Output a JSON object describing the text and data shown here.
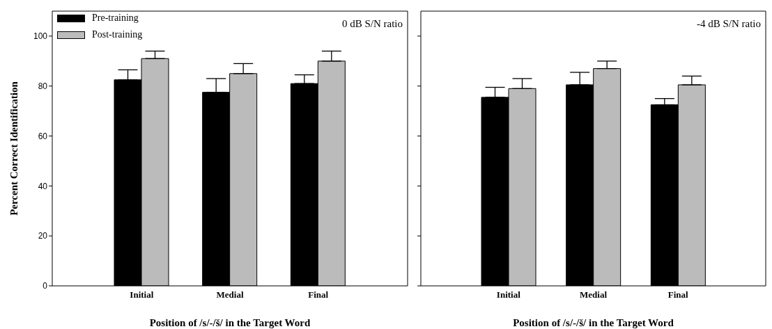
{
  "chart_data": [
    {
      "type": "bar",
      "categories": [
        "Initial",
        "Medial",
        "Final"
      ],
      "xlabel": "Position of /s/-/š/ in the Target Word",
      "ylabel": "Percent Correct Identification",
      "ylim": [
        0,
        110
      ],
      "yticks": [
        0,
        20,
        40,
        60,
        80,
        100
      ],
      "annotations": [
        "0 dB S/N ratio"
      ],
      "legend": "top left",
      "series": [
        {
          "name": "Pre-training",
          "color": "#000000",
          "values": [
            82.5,
            77.5,
            81
          ],
          "errors": [
            [
              82.5,
              86.5
            ],
            [
              77.5,
              83
            ],
            [
              81,
              84.5
            ]
          ]
        },
        {
          "name": "Post-training",
          "color": "#bbbbbb",
          "values": [
            91,
            85,
            90
          ],
          "errors": [
            [
              91,
              94
            ],
            [
              85,
              89
            ],
            [
              90,
              94
            ]
          ]
        }
      ]
    },
    {
      "type": "bar",
      "categories": [
        "Initial",
        "Medial",
        "Final"
      ],
      "xlabel": "Position of /s/-/š/ in the Target Word",
      "ylim": [
        0,
        110
      ],
      "yticks": [
        0,
        20,
        40,
        60,
        80,
        100
      ],
      "tick_labels": "x",
      "annotations": [
        "-4 dB S/N ratio"
      ],
      "series": [
        {
          "color": "#000000",
          "values": [
            75.5,
            80.5,
            72.5
          ],
          "errors": [
            [
              75.5,
              79.5
            ],
            [
              80.5,
              85.5
            ],
            [
              72.5,
              75
            ]
          ]
        },
        {
          "color": "#bbbbbb",
          "values": [
            79,
            87,
            80.5
          ],
          "errors": [
            [
              79,
              83
            ],
            [
              87,
              90
            ],
            [
              80.5,
              84
            ]
          ]
        }
      ]
    }
  ]
}
